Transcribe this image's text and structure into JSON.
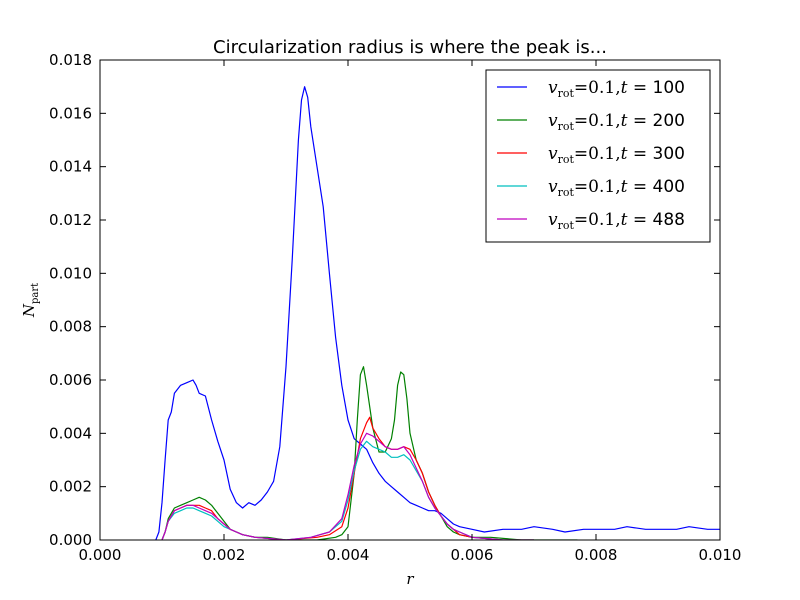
{
  "chart_data": {
    "type": "line",
    "title": "Circularization radius is where the peak is...",
    "xlabel": "r",
    "ylabel": "N_part",
    "xlim": [
      0.0,
      0.01
    ],
    "ylim": [
      0.0,
      0.018
    ],
    "x_ticks": [
      "0.000",
      "0.002",
      "0.004",
      "0.006",
      "0.008",
      "0.010"
    ],
    "y_ticks": [
      "0.000",
      "0.002",
      "0.004",
      "0.006",
      "0.008",
      "0.010",
      "0.012",
      "0.014",
      "0.016",
      "0.018"
    ],
    "grid": false,
    "legend_position": "top-right",
    "series": [
      {
        "name": "v_rot=0.1, t= 100",
        "legend_v": "v",
        "legend_sub": "rot",
        "legend_eq": "=0.1,",
        "legend_t": "t",
        "legend_tv": "= 100",
        "color": "#0000ff",
        "points": [
          [
            0.0009,
            0.0
          ],
          [
            0.00095,
            0.0003
          ],
          [
            0.001,
            0.0014
          ],
          [
            0.00105,
            0.003
          ],
          [
            0.0011,
            0.0045
          ],
          [
            0.00115,
            0.0048
          ],
          [
            0.0012,
            0.0055
          ],
          [
            0.0013,
            0.0058
          ],
          [
            0.0014,
            0.0059
          ],
          [
            0.0015,
            0.006
          ],
          [
            0.00155,
            0.0058
          ],
          [
            0.0016,
            0.0055
          ],
          [
            0.0017,
            0.0054
          ],
          [
            0.0018,
            0.0045
          ],
          [
            0.0019,
            0.0037
          ],
          [
            0.002,
            0.003
          ],
          [
            0.0021,
            0.0019
          ],
          [
            0.0022,
            0.0014
          ],
          [
            0.0023,
            0.0012
          ],
          [
            0.0024,
            0.0014
          ],
          [
            0.0025,
            0.0013
          ],
          [
            0.0026,
            0.0015
          ],
          [
            0.0027,
            0.0018
          ],
          [
            0.0028,
            0.0022
          ],
          [
            0.0029,
            0.0035
          ],
          [
            0.003,
            0.0065
          ],
          [
            0.0031,
            0.0105
          ],
          [
            0.0032,
            0.015
          ],
          [
            0.00325,
            0.0165
          ],
          [
            0.0033,
            0.017
          ],
          [
            0.00335,
            0.0166
          ],
          [
            0.0034,
            0.0155
          ],
          [
            0.0035,
            0.014
          ],
          [
            0.0036,
            0.0125
          ],
          [
            0.0037,
            0.01
          ],
          [
            0.0038,
            0.0076
          ],
          [
            0.0039,
            0.0058
          ],
          [
            0.004,
            0.0045
          ],
          [
            0.0041,
            0.0038
          ],
          [
            0.0042,
            0.0036
          ],
          [
            0.0043,
            0.0034
          ],
          [
            0.0044,
            0.0029
          ],
          [
            0.0045,
            0.0025
          ],
          [
            0.0046,
            0.0022
          ],
          [
            0.0047,
            0.002
          ],
          [
            0.0048,
            0.0018
          ],
          [
            0.0049,
            0.0016
          ],
          [
            0.005,
            0.0014
          ],
          [
            0.0051,
            0.0013
          ],
          [
            0.0052,
            0.0012
          ],
          [
            0.0053,
            0.0011
          ],
          [
            0.0054,
            0.0011
          ],
          [
            0.0055,
            0.001
          ],
          [
            0.0056,
            0.0008
          ],
          [
            0.0057,
            0.0006
          ],
          [
            0.0058,
            0.0005
          ],
          [
            0.006,
            0.0004
          ],
          [
            0.0062,
            0.0003
          ],
          [
            0.0065,
            0.0004
          ],
          [
            0.0068,
            0.0004
          ],
          [
            0.007,
            0.0005
          ],
          [
            0.0073,
            0.0004
          ],
          [
            0.0075,
            0.0003
          ],
          [
            0.0078,
            0.0004
          ],
          [
            0.008,
            0.0004
          ],
          [
            0.0083,
            0.0004
          ],
          [
            0.0085,
            0.0005
          ],
          [
            0.0088,
            0.0004
          ],
          [
            0.009,
            0.0004
          ],
          [
            0.0093,
            0.0004
          ],
          [
            0.0095,
            0.0005
          ],
          [
            0.0098,
            0.0004
          ],
          [
            0.01,
            0.0004
          ]
        ]
      },
      {
        "name": "v_rot=0.1, t= 200",
        "legend_v": "v",
        "legend_sub": "rot",
        "legend_eq": "=0.1,",
        "legend_t": "t",
        "legend_tv": "= 200",
        "color": "#008000",
        "points": [
          [
            0.001,
            0.0
          ],
          [
            0.00105,
            0.0003
          ],
          [
            0.0011,
            0.0008
          ],
          [
            0.0012,
            0.0012
          ],
          [
            0.0013,
            0.0013
          ],
          [
            0.0014,
            0.0014
          ],
          [
            0.0015,
            0.0015
          ],
          [
            0.0016,
            0.0016
          ],
          [
            0.0017,
            0.0015
          ],
          [
            0.0018,
            0.0013
          ],
          [
            0.0019,
            0.001
          ],
          [
            0.002,
            0.0007
          ],
          [
            0.0021,
            0.0004
          ],
          [
            0.0022,
            0.0003
          ],
          [
            0.0023,
            0.0002
          ],
          [
            0.0025,
            0.0001
          ],
          [
            0.0027,
            0.0001
          ],
          [
            0.003,
            0.0
          ],
          [
            0.0035,
            0.0
          ],
          [
            0.0038,
            0.0001
          ],
          [
            0.0039,
            0.0002
          ],
          [
            0.004,
            0.0005
          ],
          [
            0.0041,
            0.0025
          ],
          [
            0.00415,
            0.0045
          ],
          [
            0.0042,
            0.0062
          ],
          [
            0.00425,
            0.0065
          ],
          [
            0.0043,
            0.0058
          ],
          [
            0.0044,
            0.0042
          ],
          [
            0.0045,
            0.0033
          ],
          [
            0.0046,
            0.0033
          ],
          [
            0.0047,
            0.0038
          ],
          [
            0.00475,
            0.0045
          ],
          [
            0.0048,
            0.0058
          ],
          [
            0.00485,
            0.0063
          ],
          [
            0.0049,
            0.0062
          ],
          [
            0.00495,
            0.0053
          ],
          [
            0.005,
            0.004
          ],
          [
            0.0051,
            0.003
          ],
          [
            0.0052,
            0.0025
          ],
          [
            0.0053,
            0.0018
          ],
          [
            0.0054,
            0.0013
          ],
          [
            0.0055,
            0.0009
          ],
          [
            0.0056,
            0.0005
          ],
          [
            0.0057,
            0.0003
          ],
          [
            0.0058,
            0.0002
          ],
          [
            0.006,
            0.0001
          ],
          [
            0.0063,
            0.0001
          ],
          [
            0.0068,
            0.0
          ],
          [
            0.0075,
            0.0
          ],
          [
            0.0077,
            0.0
          ]
        ]
      },
      {
        "name": "v_rot=0.1, t= 300",
        "legend_v": "v",
        "legend_sub": "rot",
        "legend_eq": "=0.1,",
        "legend_t": "t",
        "legend_tv": "= 300",
        "color": "#ff0000",
        "points": [
          [
            0.001,
            0.0
          ],
          [
            0.00105,
            0.0003
          ],
          [
            0.0011,
            0.0007
          ],
          [
            0.0012,
            0.0011
          ],
          [
            0.0013,
            0.0012
          ],
          [
            0.0014,
            0.0013
          ],
          [
            0.0015,
            0.0013
          ],
          [
            0.0016,
            0.0013
          ],
          [
            0.0017,
            0.0012
          ],
          [
            0.0018,
            0.0011
          ],
          [
            0.0019,
            0.0008
          ],
          [
            0.002,
            0.0006
          ],
          [
            0.0021,
            0.0004
          ],
          [
            0.0022,
            0.0003
          ],
          [
            0.0023,
            0.0002
          ],
          [
            0.0025,
            0.0001
          ],
          [
            0.003,
            0.0
          ],
          [
            0.0035,
            0.0001
          ],
          [
            0.0037,
            0.0002
          ],
          [
            0.0039,
            0.0005
          ],
          [
            0.004,
            0.0012
          ],
          [
            0.0041,
            0.0025
          ],
          [
            0.0042,
            0.0038
          ],
          [
            0.0043,
            0.0044
          ],
          [
            0.00435,
            0.0046
          ],
          [
            0.0044,
            0.0042
          ],
          [
            0.0045,
            0.0038
          ],
          [
            0.0046,
            0.0035
          ],
          [
            0.0047,
            0.0034
          ],
          [
            0.0048,
            0.0034
          ],
          [
            0.0049,
            0.0035
          ],
          [
            0.005,
            0.0034
          ],
          [
            0.0051,
            0.003
          ],
          [
            0.0052,
            0.0025
          ],
          [
            0.0053,
            0.0018
          ],
          [
            0.0054,
            0.0013
          ],
          [
            0.0055,
            0.0009
          ],
          [
            0.0056,
            0.0006
          ],
          [
            0.0057,
            0.0004
          ],
          [
            0.0058,
            0.0002
          ],
          [
            0.006,
            0.0001
          ],
          [
            0.0065,
            0.0
          ],
          [
            0.007,
            0.0
          ]
        ]
      },
      {
        "name": "v_rot=0.1, t= 400",
        "legend_v": "v",
        "legend_sub": "rot",
        "legend_eq": "=0.1,",
        "legend_t": "t",
        "legend_tv": "= 400",
        "color": "#00bfbf",
        "points": [
          [
            0.001,
            0.0
          ],
          [
            0.00105,
            0.0003
          ],
          [
            0.0011,
            0.0007
          ],
          [
            0.0012,
            0.001
          ],
          [
            0.0013,
            0.0011
          ],
          [
            0.0014,
            0.0012
          ],
          [
            0.0015,
            0.0012
          ],
          [
            0.0016,
            0.0011
          ],
          [
            0.0017,
            0.001
          ],
          [
            0.0018,
            0.0009
          ],
          [
            0.0019,
            0.0007
          ],
          [
            0.002,
            0.0005
          ],
          [
            0.0021,
            0.0004
          ],
          [
            0.0022,
            0.0003
          ],
          [
            0.0023,
            0.0002
          ],
          [
            0.0025,
            0.0001
          ],
          [
            0.003,
            0.0
          ],
          [
            0.0034,
            0.0001
          ],
          [
            0.0037,
            0.0003
          ],
          [
            0.0039,
            0.0007
          ],
          [
            0.004,
            0.0015
          ],
          [
            0.0041,
            0.0026
          ],
          [
            0.0042,
            0.0034
          ],
          [
            0.0043,
            0.0037
          ],
          [
            0.0044,
            0.0035
          ],
          [
            0.0045,
            0.0034
          ],
          [
            0.0046,
            0.0033
          ],
          [
            0.0047,
            0.0031
          ],
          [
            0.0048,
            0.0031
          ],
          [
            0.0049,
            0.0032
          ],
          [
            0.005,
            0.003
          ],
          [
            0.0051,
            0.0026
          ],
          [
            0.0052,
            0.0022
          ],
          [
            0.0053,
            0.0016
          ],
          [
            0.0054,
            0.0012
          ],
          [
            0.0055,
            0.0009
          ],
          [
            0.0056,
            0.0006
          ],
          [
            0.0057,
            0.0004
          ],
          [
            0.0058,
            0.0003
          ],
          [
            0.006,
            0.0001
          ],
          [
            0.0065,
            0.0
          ],
          [
            0.007,
            0.0
          ]
        ]
      },
      {
        "name": "v_rot=0.1, t= 488",
        "legend_v": "v",
        "legend_sub": "rot",
        "legend_eq": "=0.1,",
        "legend_t": "t",
        "legend_tv": "= 488",
        "color": "#bf00bf",
        "points": [
          [
            0.001,
            0.0
          ],
          [
            0.00105,
            0.0003
          ],
          [
            0.0011,
            0.0007
          ],
          [
            0.0012,
            0.0011
          ],
          [
            0.0013,
            0.0012
          ],
          [
            0.0014,
            0.0013
          ],
          [
            0.0015,
            0.0013
          ],
          [
            0.0016,
            0.0012
          ],
          [
            0.0017,
            0.0011
          ],
          [
            0.0018,
            0.001
          ],
          [
            0.0019,
            0.0008
          ],
          [
            0.002,
            0.0006
          ],
          [
            0.0021,
            0.0004
          ],
          [
            0.0022,
            0.0003
          ],
          [
            0.0023,
            0.0002
          ],
          [
            0.0025,
            0.0001
          ],
          [
            0.003,
            0.0
          ],
          [
            0.0034,
            0.0001
          ],
          [
            0.0037,
            0.0003
          ],
          [
            0.0039,
            0.0008
          ],
          [
            0.004,
            0.0017
          ],
          [
            0.0041,
            0.0028
          ],
          [
            0.0042,
            0.0036
          ],
          [
            0.0043,
            0.004
          ],
          [
            0.0044,
            0.0039
          ],
          [
            0.0045,
            0.0037
          ],
          [
            0.0046,
            0.0035
          ],
          [
            0.0047,
            0.0034
          ],
          [
            0.0048,
            0.0034
          ],
          [
            0.0049,
            0.0035
          ],
          [
            0.005,
            0.0032
          ],
          [
            0.0051,
            0.0027
          ],
          [
            0.0052,
            0.0022
          ],
          [
            0.0053,
            0.0016
          ],
          [
            0.0054,
            0.0012
          ],
          [
            0.0055,
            0.0009
          ],
          [
            0.0056,
            0.0006
          ],
          [
            0.0057,
            0.0004
          ],
          [
            0.0058,
            0.0003
          ],
          [
            0.006,
            0.0001
          ],
          [
            0.0065,
            0.0
          ],
          [
            0.007,
            0.0
          ]
        ]
      }
    ]
  }
}
